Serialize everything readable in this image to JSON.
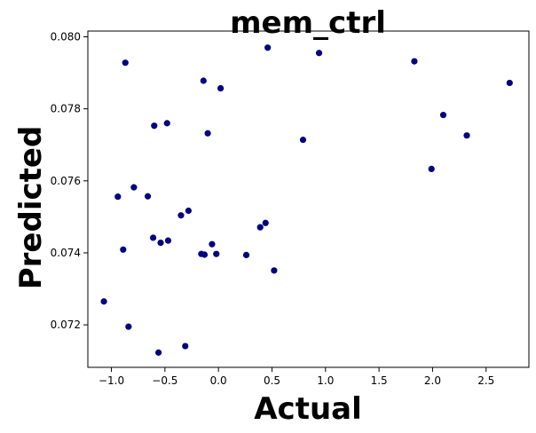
{
  "chart_data": {
    "type": "scatter",
    "title": "mem_ctrl",
    "xlabel": "Actual",
    "ylabel": "Predicted",
    "xlim": [
      -1.22,
      2.9
    ],
    "ylim": [
      0.07082,
      0.08016
    ],
    "xticks": [
      -1.0,
      -0.5,
      0.0,
      0.5,
      1.0,
      1.5,
      2.0,
      2.5
    ],
    "xtick_labels": [
      "−1.0",
      "−0.5",
      "0.0",
      "0.5",
      "1.0",
      "1.5",
      "2.0",
      "2.5"
    ],
    "yticks": [
      0.072,
      0.074,
      0.076,
      0.078,
      0.08
    ],
    "ytick_labels": [
      "0.072",
      "0.074",
      "0.076",
      "0.078",
      "0.080"
    ],
    "grid": false,
    "point_color": "#000080",
    "series": [
      {
        "x": [
          -1.07,
          -0.94,
          -0.89,
          -0.87,
          -0.84,
          -0.79,
          -0.66,
          -0.61,
          -0.6,
          -0.56,
          -0.54,
          -0.48,
          -0.47,
          -0.35,
          -0.31,
          -0.28,
          -0.16,
          -0.14,
          -0.13,
          -0.1,
          -0.06,
          -0.02,
          0.02,
          0.26,
          0.39,
          0.44,
          0.46,
          0.52,
          0.79,
          0.94,
          1.83,
          1.99,
          2.1,
          2.32,
          2.72
        ],
        "y": [
          0.07265,
          0.07556,
          0.07409,
          0.07928,
          0.07195,
          0.07582,
          0.07557,
          0.07442,
          0.07753,
          0.07123,
          0.07428,
          0.0776,
          0.07434,
          0.07504,
          0.07141,
          0.07517,
          0.07397,
          0.07878,
          0.07395,
          0.07732,
          0.07424,
          0.07397,
          0.07857,
          0.07394,
          0.07471,
          0.07483,
          0.0797,
          0.07351,
          0.07714,
          0.07955,
          0.07932,
          0.07633,
          0.07783,
          0.07726,
          0.07872
        ]
      }
    ]
  }
}
